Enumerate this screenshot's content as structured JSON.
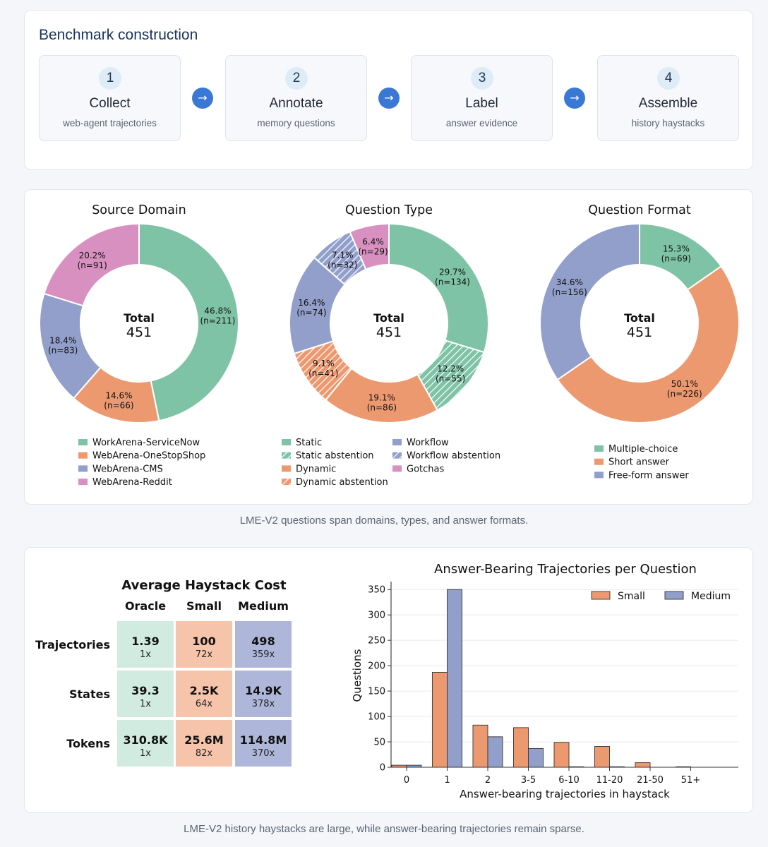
{
  "pipeline": {
    "title": "Benchmark construction",
    "arrow_glyph": "→",
    "steps": [
      {
        "num": "1",
        "name": "Collect",
        "sub": "web-agent trajectories"
      },
      {
        "num": "2",
        "name": "Annotate",
        "sub": "memory questions"
      },
      {
        "num": "3",
        "name": "Label",
        "sub": "answer evidence"
      },
      {
        "num": "4",
        "name": "Assemble",
        "sub": "history haystacks"
      }
    ]
  },
  "captions": {
    "pies": "LME-V2 questions span domains, types, and answer formats.",
    "bottom": "LME-V2 history haystacks are large, while answer-bearing trajectories remain sparse."
  },
  "chart_data": [
    {
      "type": "pie",
      "title": "Source Domain",
      "center_label": "Total",
      "center_value": "451",
      "slices": [
        {
          "label": "WorkArena-ServiceNow",
          "value": 211,
          "pct": "46.8%",
          "n": "(n=211)",
          "color": "#7fc3a6",
          "hatch": false
        },
        {
          "label": "WebArena-OneStopShop",
          "value": 66,
          "pct": "14.6%",
          "n": "(n=66)",
          "color": "#ec9970",
          "hatch": false
        },
        {
          "label": "WebArena-CMS",
          "value": 83,
          "pct": "18.4%",
          "n": "(n=83)",
          "color": "#919fca",
          "hatch": false
        },
        {
          "label": "WebArena-Reddit",
          "value": 91,
          "pct": "20.2%",
          "n": "(n=91)",
          "color": "#d890c0",
          "hatch": false
        }
      ]
    },
    {
      "type": "pie",
      "title": "Question Type",
      "center_label": "Total",
      "center_value": "451",
      "slices": [
        {
          "label": "Static",
          "value": 134,
          "pct": "29.7%",
          "n": "(n=134)",
          "color": "#7fc3a6",
          "hatch": false
        },
        {
          "label": "Static abstention",
          "value": 55,
          "pct": "12.2%",
          "n": "(n=55)",
          "color": "#7fc3a6",
          "hatch": true
        },
        {
          "label": "Dynamic",
          "value": 86,
          "pct": "19.1%",
          "n": "(n=86)",
          "color": "#ec9970",
          "hatch": false
        },
        {
          "label": "Dynamic abstention",
          "value": 41,
          "pct": "9.1%",
          "n": "(n=41)",
          "color": "#ec9970",
          "hatch": true
        },
        {
          "label": "Workflow",
          "value": 74,
          "pct": "16.4%",
          "n": "(n=74)",
          "color": "#919fca",
          "hatch": false
        },
        {
          "label": "Workflow abstention",
          "value": 32,
          "pct": "7.1%",
          "n": "(n=32)",
          "color": "#919fca",
          "hatch": true
        },
        {
          "label": "Gotchas",
          "value": 29,
          "pct": "6.4%",
          "n": "(n=29)",
          "color": "#d890c0",
          "hatch": false
        }
      ]
    },
    {
      "type": "pie",
      "title": "Question Format",
      "center_label": "Total",
      "center_value": "451",
      "slices": [
        {
          "label": "Multiple-choice",
          "value": 69,
          "pct": "15.3%",
          "n": "(n=69)",
          "color": "#7fc3a6",
          "hatch": false
        },
        {
          "label": "Short answer",
          "value": 226,
          "pct": "50.1%",
          "n": "(n=226)",
          "color": "#ec9970",
          "hatch": false
        },
        {
          "label": "Free-form answer",
          "value": 156,
          "pct": "34.6%",
          "n": "(n=156)",
          "color": "#919fca",
          "hatch": false
        }
      ]
    },
    {
      "type": "table",
      "title": "Average Haystack Cost",
      "columns": [
        "Oracle",
        "Small",
        "Medium"
      ],
      "column_colors": [
        "#d2ebe0",
        "#f5c4aa",
        "#aeb7d9"
      ],
      "rows": [
        {
          "label": "Trajectories",
          "cells": [
            {
              "value": "1.39",
              "ratio": "1x"
            },
            {
              "value": "100",
              "ratio": "72x"
            },
            {
              "value": "498",
              "ratio": "359x"
            }
          ]
        },
        {
          "label": "States",
          "cells": [
            {
              "value": "39.3",
              "ratio": "1x"
            },
            {
              "value": "2.5K",
              "ratio": "64x"
            },
            {
              "value": "14.9K",
              "ratio": "378x"
            }
          ]
        },
        {
          "label": "Tokens",
          "cells": [
            {
              "value": "310.8K",
              "ratio": "1x"
            },
            {
              "value": "25.6M",
              "ratio": "82x"
            },
            {
              "value": "114.8M",
              "ratio": "370x"
            }
          ]
        }
      ]
    },
    {
      "type": "bar",
      "title": "Answer-Bearing Trajectories per Question",
      "xlabel": "Answer-bearing trajectories in haystack",
      "ylabel": "Questions",
      "categories": [
        "0",
        "1",
        "2",
        "3-5",
        "6-10",
        "11-20",
        "21-50",
        "51+"
      ],
      "ylim": [
        0,
        360
      ],
      "yticks": [
        0,
        50,
        100,
        150,
        200,
        250,
        300,
        350
      ],
      "grid": true,
      "legend": "top-right",
      "series": [
        {
          "name": "Small",
          "color": "#ec9970",
          "values": [
            4,
            187,
            83,
            78,
            49,
            41,
            9,
            1
          ]
        },
        {
          "name": "Medium",
          "color": "#919fca",
          "values": [
            4,
            350,
            60,
            37,
            1,
            1,
            0,
            0
          ]
        }
      ]
    }
  ]
}
